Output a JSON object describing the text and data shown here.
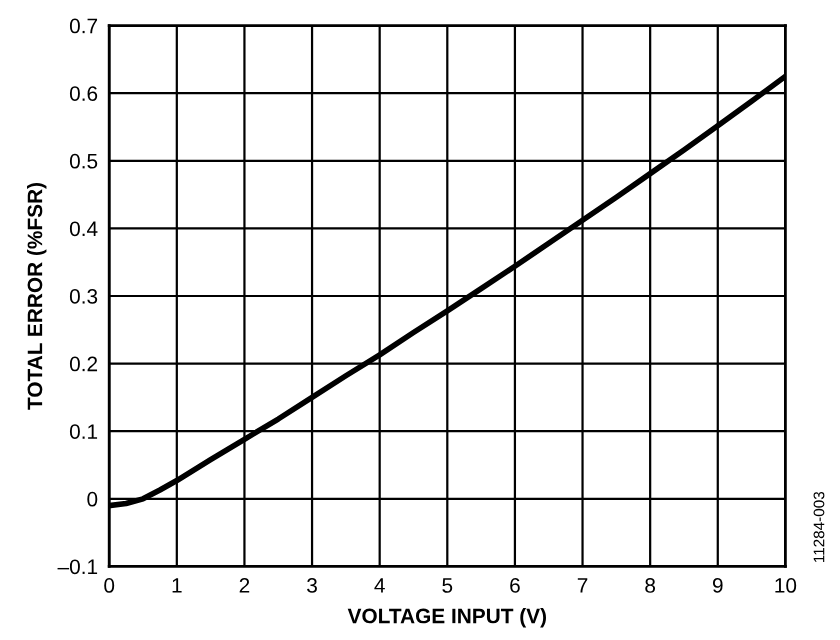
{
  "chart_data": {
    "type": "line",
    "xlabel": "VOLTAGE INPUT (V)",
    "ylabel": "TOTAL ERROR (%FSR)",
    "x": [
      0,
      0.25,
      0.5,
      0.75,
      1,
      1.5,
      2,
      2.5,
      3,
      3.5,
      4,
      4.5,
      5,
      5.5,
      6,
      6.5,
      7,
      7.5,
      8,
      8.5,
      9,
      9.5,
      10
    ],
    "series": [
      {
        "color": "#000000",
        "values": [
          -0.01,
          -0.007,
          0.0,
          0.013,
          0.027,
          0.058,
          0.088,
          0.118,
          0.15,
          0.182,
          0.213,
          0.246,
          0.278,
          0.311,
          0.344,
          0.378,
          0.412,
          0.446,
          0.481,
          0.516,
          0.552,
          0.588,
          0.625
        ]
      }
    ],
    "xlim": [
      0,
      10
    ],
    "xticks": [
      0,
      1,
      2,
      3,
      4,
      5,
      6,
      7,
      8,
      9,
      10
    ],
    "ylim": [
      -0.1,
      0.7
    ],
    "yticks": [
      {
        "value": -0.1,
        "label": "–0.1"
      },
      0,
      0.1,
      0.2,
      0.3,
      0.4,
      0.5,
      0.6,
      0.7
    ],
    "grid": true,
    "line_style": "solid",
    "marker": "none",
    "annotations": [
      "11284-003"
    ]
  }
}
